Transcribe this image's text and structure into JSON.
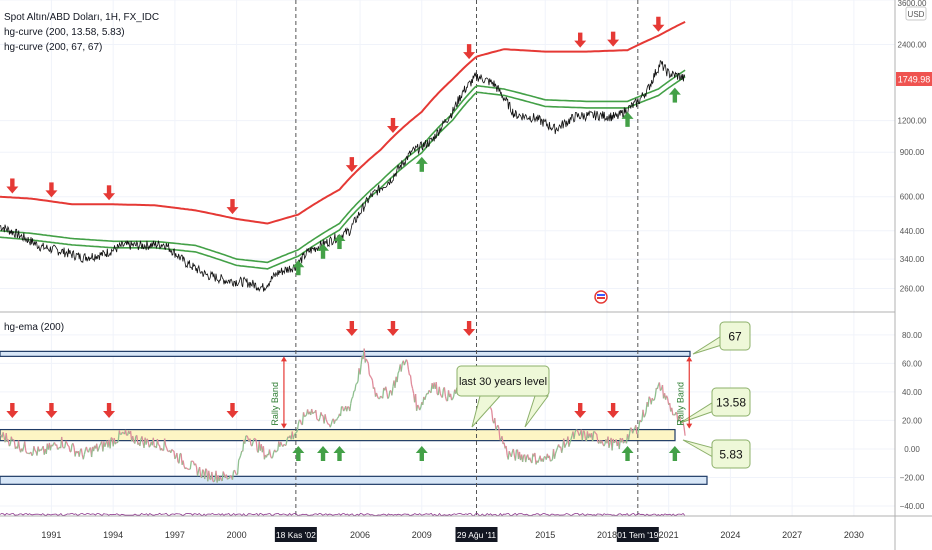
{
  "legend": {
    "symbol": "Spot Altın/ABD Doları, 1H, FX_IDC",
    "study1": "hg-curve (200, 13.58, 5.83)",
    "study2": "hg-curve (200, 67, 67)",
    "panel2": "hg-ema (200)"
  },
  "currency": "USD",
  "last_price": "1749.98",
  "price_axis": {
    "ticks": [
      {
        "value": 3600,
        "label": "3600.00"
      },
      {
        "value": 2400,
        "label": "2400.00"
      },
      {
        "value": 1200,
        "label": "1200.00"
      },
      {
        "value": 900,
        "label": "900.00"
      },
      {
        "value": 600,
        "label": "600.00"
      },
      {
        "value": 440,
        "label": "440.00"
      },
      {
        "value": 340,
        "label": "340.00"
      },
      {
        "value": 260,
        "label": "260.00"
      }
    ],
    "scale": "log",
    "range": [
      210,
      3600
    ]
  },
  "ind_axis": {
    "ticks": [
      {
        "value": 80,
        "label": "80.00"
      },
      {
        "value": 60,
        "label": "60.00"
      },
      {
        "value": 40,
        "label": "40.00"
      },
      {
        "value": 20,
        "label": "20.00"
      },
      {
        "value": 0,
        "label": "0.00"
      },
      {
        "value": -20,
        "label": "−20.00"
      },
      {
        "value": -40,
        "label": "−40.00"
      }
    ],
    "range": [
      -47,
      96
    ]
  },
  "time_axis": {
    "range": [
      1988.5,
      2032
    ],
    "ticks": [
      {
        "year": 1991,
        "label": "1991"
      },
      {
        "year": 1994,
        "label": "1994"
      },
      {
        "year": 1997,
        "label": "1997"
      },
      {
        "year": 2000,
        "label": "2000"
      },
      {
        "year": 2006,
        "label": "2006"
      },
      {
        "year": 2009,
        "label": "2009"
      },
      {
        "year": 2015,
        "label": "2015"
      },
      {
        "year": 2018,
        "label": "2018"
      },
      {
        "year": 2021,
        "label": "2021"
      },
      {
        "year": 2024,
        "label": "2024"
      },
      {
        "year": 2027,
        "label": "2027"
      },
      {
        "year": 2030,
        "label": "2030"
      }
    ],
    "highlighted": [
      {
        "year": 2002.88,
        "label": "18 Kas '02"
      },
      {
        "year": 2011.66,
        "label": "29 Ağu '11"
      },
      {
        "year": 2019.5,
        "label": "01 Tem '19"
      }
    ]
  },
  "annotations": {
    "level_67": "67",
    "level_1358": "13.58",
    "level_583": "5.83",
    "last30": "last 30 years level",
    "rally_band": "Rally Band"
  },
  "colors": {
    "price": "#111111",
    "upper_curve": "#e53935",
    "green_curve": "#43a047",
    "arrow_down": "#e53935",
    "arrow_up": "#43a047",
    "ind_up": "#8fbf8f",
    "ind_down": "#e08a9a",
    "band_yellow": "#fdf5c4",
    "band_blue": "#d7e6f7",
    "note_bg": "#eef8d8"
  },
  "chart_data": [
    {
      "type": "line",
      "title": "Spot Altın/ABD Doları, 1H, FX_IDC",
      "yscale": "log",
      "ylim": [
        210,
        3600
      ],
      "series": [
        {
          "name": "Spot Altın/ABD Doları",
          "x": [
            1988.5,
            1989.5,
            1990.5,
            1991.5,
            1992.5,
            1993.5,
            1994.5,
            1995.5,
            1996.5,
            1997.5,
            1998.5,
            1999.5,
            2000.5,
            2001.3,
            2002.0,
            2002.9,
            2003.5,
            2004.5,
            2005.5,
            2006.5,
            2007.5,
            2008.5,
            2009.5,
            2010.5,
            2011.0,
            2011.66,
            2012.5,
            2013.5,
            2014.5,
            2015.5,
            2016.5,
            2017.5,
            2018.5,
            2019.5,
            2020.0,
            2020.6,
            2021.0,
            2021.5,
            2021.8
          ],
          "y": [
            460,
            420,
            380,
            365,
            345,
            355,
            385,
            385,
            390,
            330,
            295,
            280,
            275,
            262,
            300,
            320,
            365,
            400,
            440,
            600,
            700,
            900,
            1000,
            1300,
            1560,
            1800,
            1680,
            1270,
            1230,
            1110,
            1250,
            1260,
            1240,
            1420,
            1600,
            2020,
            1840,
            1800,
            1750
          ]
        },
        {
          "name": "hg-curve (200, 67, 67)",
          "x": [
            1988.5,
            1990,
            1992,
            1994,
            1996,
            1998,
            2000,
            2001.5,
            2003,
            2005,
            2007,
            2009,
            2010.5,
            2011.66,
            2013,
            2015,
            2017,
            2019,
            2020.5,
            2021.8
          ],
          "y": [
            600,
            590,
            560,
            560,
            555,
            530,
            490,
            470,
            510,
            640,
            920,
            1300,
            1750,
            2150,
            2300,
            2250,
            2250,
            2280,
            2600,
            2950
          ]
        },
        {
          "name": "hg-curve (200, 13.58, 5.83)",
          "x": [
            1988.5,
            1990,
            1992,
            1994,
            1996,
            1998,
            2000,
            2001.5,
            2003,
            2005,
            2007,
            2009,
            2010.5,
            2011.66,
            2013,
            2015,
            2017,
            2019,
            2020.5,
            2021.8
          ],
          "y": [
            440,
            430,
            410,
            400,
            400,
            385,
            340,
            330,
            370,
            470,
            690,
            950,
            1280,
            1650,
            1600,
            1450,
            1430,
            1430,
            1600,
            1900
          ]
        },
        {
          "name": "hg-curve (200, 13.58, 5.83) lower",
          "x": [
            1988.5,
            1990,
            1992,
            1994,
            1996,
            1998,
            2000,
            2001.5,
            2003,
            2005,
            2007,
            2009,
            2010.5,
            2011.66,
            2013,
            2015,
            2017,
            2019,
            2020.5,
            2021.8
          ],
          "y": [
            415,
            405,
            387,
            377,
            377,
            363,
            321,
            311,
            349,
            443,
            650,
            895,
            1205,
            1555,
            1510,
            1365,
            1348,
            1348,
            1508,
            1790
          ]
        }
      ],
      "markers_down": [
        1989.1,
        1991.0,
        1993.8,
        1999.8,
        2005.6,
        2007.6,
        2011.3,
        2016.7,
        2018.3,
        2020.5
      ],
      "markers_up": [
        2003.0,
        2004.2,
        2005.0,
        2009.0,
        2019.0,
        2021.3
      ]
    },
    {
      "type": "line",
      "title": "hg-ema (200)",
      "ylim": [
        -47,
        96
      ],
      "series": [
        {
          "name": "hg-ema (200)",
          "x": [
            1988.5,
            1989.5,
            1990.5,
            1991.5,
            1992.5,
            1993.5,
            1994.5,
            1995.5,
            1996.5,
            1997.5,
            1998.5,
            1999.5,
            2000.0,
            2000.5,
            2001.5,
            2002.9,
            2003.5,
            2004.5,
            2005.5,
            2006.2,
            2006.8,
            2007.5,
            2008.2,
            2008.8,
            2009.5,
            2010.5,
            2011.2,
            2011.66,
            2012.3,
            2013.2,
            2014.0,
            2015.0,
            2016.5,
            2017.5,
            2018.5,
            2019.5,
            2020.0,
            2020.6,
            2021.2,
            2021.8
          ],
          "y": [
            10,
            2,
            -3,
            5,
            -4,
            2,
            10,
            5,
            3,
            -10,
            -18,
            -20,
            -16,
            10,
            -5,
            12,
            28,
            18,
            30,
            66,
            38,
            40,
            64,
            28,
            45,
            35,
            52,
            50,
            28,
            -4,
            -5,
            -8,
            10,
            8,
            2,
            15,
            32,
            44,
            26,
            12
          ]
        }
      ],
      "levels": [
        67,
        13.58,
        5.83,
        -22
      ],
      "markers_down": [
        1989.1,
        1991.0,
        1993.8,
        1999.8,
        2005.6,
        2007.6,
        2011.3,
        2016.7,
        2018.3
      ],
      "markers_up": [
        2003.0,
        2004.2,
        2005.0,
        2009.0,
        2019.0,
        2021.3
      ]
    }
  ]
}
